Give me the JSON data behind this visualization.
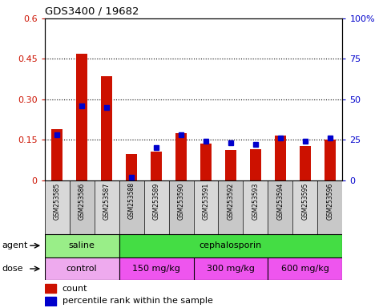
{
  "title": "GDS3400 / 19682",
  "samples": [
    "GSM253585",
    "GSM253586",
    "GSM253587",
    "GSM253588",
    "GSM253589",
    "GSM253590",
    "GSM253591",
    "GSM253592",
    "GSM253593",
    "GSM253594",
    "GSM253595",
    "GSM253596"
  ],
  "count_values": [
    0.19,
    0.47,
    0.385,
    0.098,
    0.105,
    0.175,
    0.135,
    0.112,
    0.115,
    0.165,
    0.128,
    0.152
  ],
  "percentile_values": [
    28,
    46,
    45,
    2,
    20,
    28,
    24,
    23,
    22,
    26,
    24,
    26
  ],
  "left_ylim": [
    0,
    0.6
  ],
  "right_ylim": [
    0,
    100
  ],
  "left_yticks": [
    0,
    0.15,
    0.3,
    0.45,
    0.6
  ],
  "left_yticklabels": [
    "0",
    "0.15",
    "0.30",
    "0.45",
    "0.6"
  ],
  "right_yticks": [
    0,
    25,
    50,
    75,
    100
  ],
  "right_yticklabels": [
    "0",
    "25",
    "50",
    "75",
    "100%"
  ],
  "bar_color": "#cc1100",
  "dot_color": "#0000cc",
  "agent_groups": [
    {
      "label": "saline",
      "start": 0,
      "end": 3,
      "color": "#99ee88"
    },
    {
      "label": "cephalosporin",
      "start": 3,
      "end": 12,
      "color": "#44dd44"
    }
  ],
  "dose_groups": [
    {
      "label": "control",
      "start": 0,
      "end": 3,
      "color": "#eeaaee"
    },
    {
      "label": "150 mg/kg",
      "start": 3,
      "end": 6,
      "color": "#ee55ee"
    },
    {
      "label": "300 mg/kg",
      "start": 6,
      "end": 9,
      "color": "#ee55ee"
    },
    {
      "label": "600 mg/kg",
      "start": 9,
      "end": 12,
      "color": "#ee55ee"
    }
  ],
  "cell_bg_colors": [
    "#d8d8d8",
    "#c8c8c8",
    "#d8d8d8",
    "#c8c8c8",
    "#d8d8d8",
    "#c8c8c8",
    "#d8d8d8",
    "#c8c8c8",
    "#d8d8d8",
    "#c8c8c8",
    "#d8d8d8",
    "#c8c8c8"
  ],
  "legend_count_label": "count",
  "legend_percentile_label": "percentile rank within the sample",
  "agent_label": "agent",
  "dose_label": "dose",
  "plot_bg": "#ffffff",
  "grid_dotted_color": "#000000"
}
